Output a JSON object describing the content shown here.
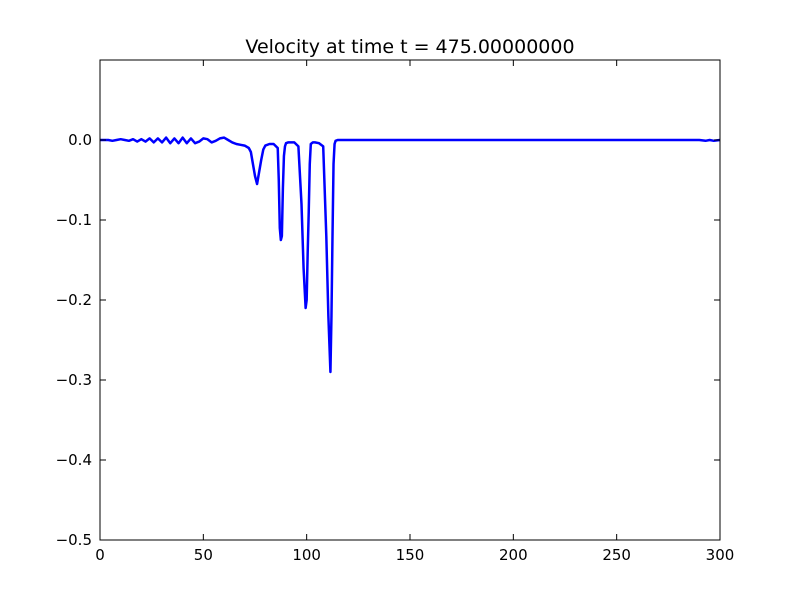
{
  "chart_data": {
    "type": "line",
    "title": "Velocity at time t =   475.00000000",
    "xlabel": "",
    "ylabel": "",
    "xlim": [
      0,
      300
    ],
    "ylim": [
      -0.5,
      0.1
    ],
    "x_ticks": [
      0,
      50,
      100,
      150,
      200,
      250,
      300
    ],
    "x_tick_labels": [
      "0",
      "50",
      "100",
      "150",
      "200",
      "250",
      "300"
    ],
    "y_ticks": [
      0.0,
      -0.1,
      -0.2,
      -0.3,
      -0.4,
      -0.5
    ],
    "y_tick_labels": [
      "0.0",
      "−0.1",
      "−0.2",
      "−0.3",
      "−0.4",
      "−0.5"
    ],
    "grid": false,
    "series": [
      {
        "color": "#0000ff",
        "x": [
          0,
          2,
          4,
          6,
          8,
          10,
          12,
          14,
          16,
          18,
          20,
          22,
          24,
          26,
          28,
          30,
          32,
          34,
          36,
          38,
          40,
          42,
          44,
          46,
          48,
          50,
          52,
          54,
          56,
          58,
          60,
          62,
          64,
          66,
          68,
          70,
          72,
          73,
          74,
          75,
          76,
          77,
          78,
          79,
          80,
          82,
          84,
          86,
          86.5,
          87,
          87.5,
          88,
          88.5,
          89,
          89.5,
          90,
          91,
          92,
          94,
          96,
          97.5,
          98.5,
          99.5,
          100,
          100.5,
          101,
          101.5,
          102,
          103,
          104,
          106,
          108,
          109.5,
          110.5,
          111.5,
          112,
          112.5,
          113,
          113.5,
          114,
          115,
          116,
          118,
          120,
          150,
          200,
          250,
          290,
          293,
          295,
          297,
          300
        ],
        "y": [
          0.0,
          0.0,
          0.0,
          -0.001,
          0.0,
          0.001,
          0.0,
          -0.001,
          0.001,
          -0.002,
          0.001,
          -0.002,
          0.002,
          -0.003,
          0.002,
          -0.003,
          0.003,
          -0.004,
          0.002,
          -0.004,
          0.003,
          -0.004,
          0.002,
          -0.004,
          -0.002,
          0.002,
          0.001,
          -0.003,
          -0.001,
          0.002,
          0.003,
          0.0,
          -0.003,
          -0.005,
          -0.006,
          -0.007,
          -0.01,
          -0.015,
          -0.03,
          -0.045,
          -0.055,
          -0.04,
          -0.025,
          -0.012,
          -0.007,
          -0.005,
          -0.005,
          -0.01,
          -0.05,
          -0.11,
          -0.125,
          -0.12,
          -0.06,
          -0.02,
          -0.008,
          -0.004,
          -0.003,
          -0.003,
          -0.003,
          -0.008,
          -0.08,
          -0.16,
          -0.21,
          -0.2,
          -0.14,
          -0.09,
          -0.03,
          -0.005,
          -0.003,
          -0.003,
          -0.004,
          -0.008,
          -0.12,
          -0.22,
          -0.29,
          -0.22,
          -0.12,
          -0.03,
          -0.005,
          -0.001,
          0.0,
          0.0,
          0.0,
          0.0,
          0.0,
          0.0,
          0.0,
          0.0,
          -0.001,
          0.0,
          -0.001,
          0.0
        ]
      }
    ]
  }
}
